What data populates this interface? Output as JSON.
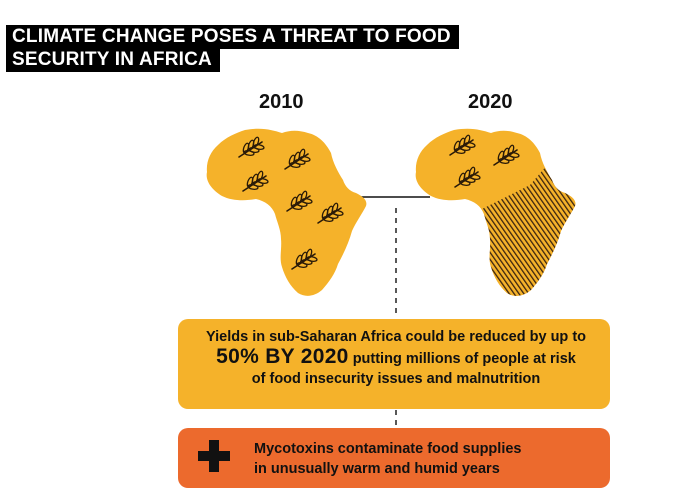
{
  "title": {
    "line1": "CLIMATE CHANGE POSES A THREAT TO FOOD",
    "line2": "SECURITY IN AFRICA"
  },
  "years": {
    "left": "2010",
    "right": "2020"
  },
  "yield_box": {
    "line1": "Yields in sub-Saharan Africa could be reduced by up to",
    "highlight": "50% BY 2020",
    "line2_rest": "putting millions of people at risk",
    "line3": "of food insecurity issues and malnutrition"
  },
  "mycotoxin_box": {
    "line1": "Mycotoxins contaminate food supplies",
    "line2": "in unusually warm and humid years"
  },
  "colors": {
    "map_yellow": "#f5b22a",
    "orange": "#ec6a2d",
    "dark": "#3a2410",
    "title_bg": "#000000"
  },
  "icons": [
    "wheat-icon",
    "plus-icon"
  ]
}
